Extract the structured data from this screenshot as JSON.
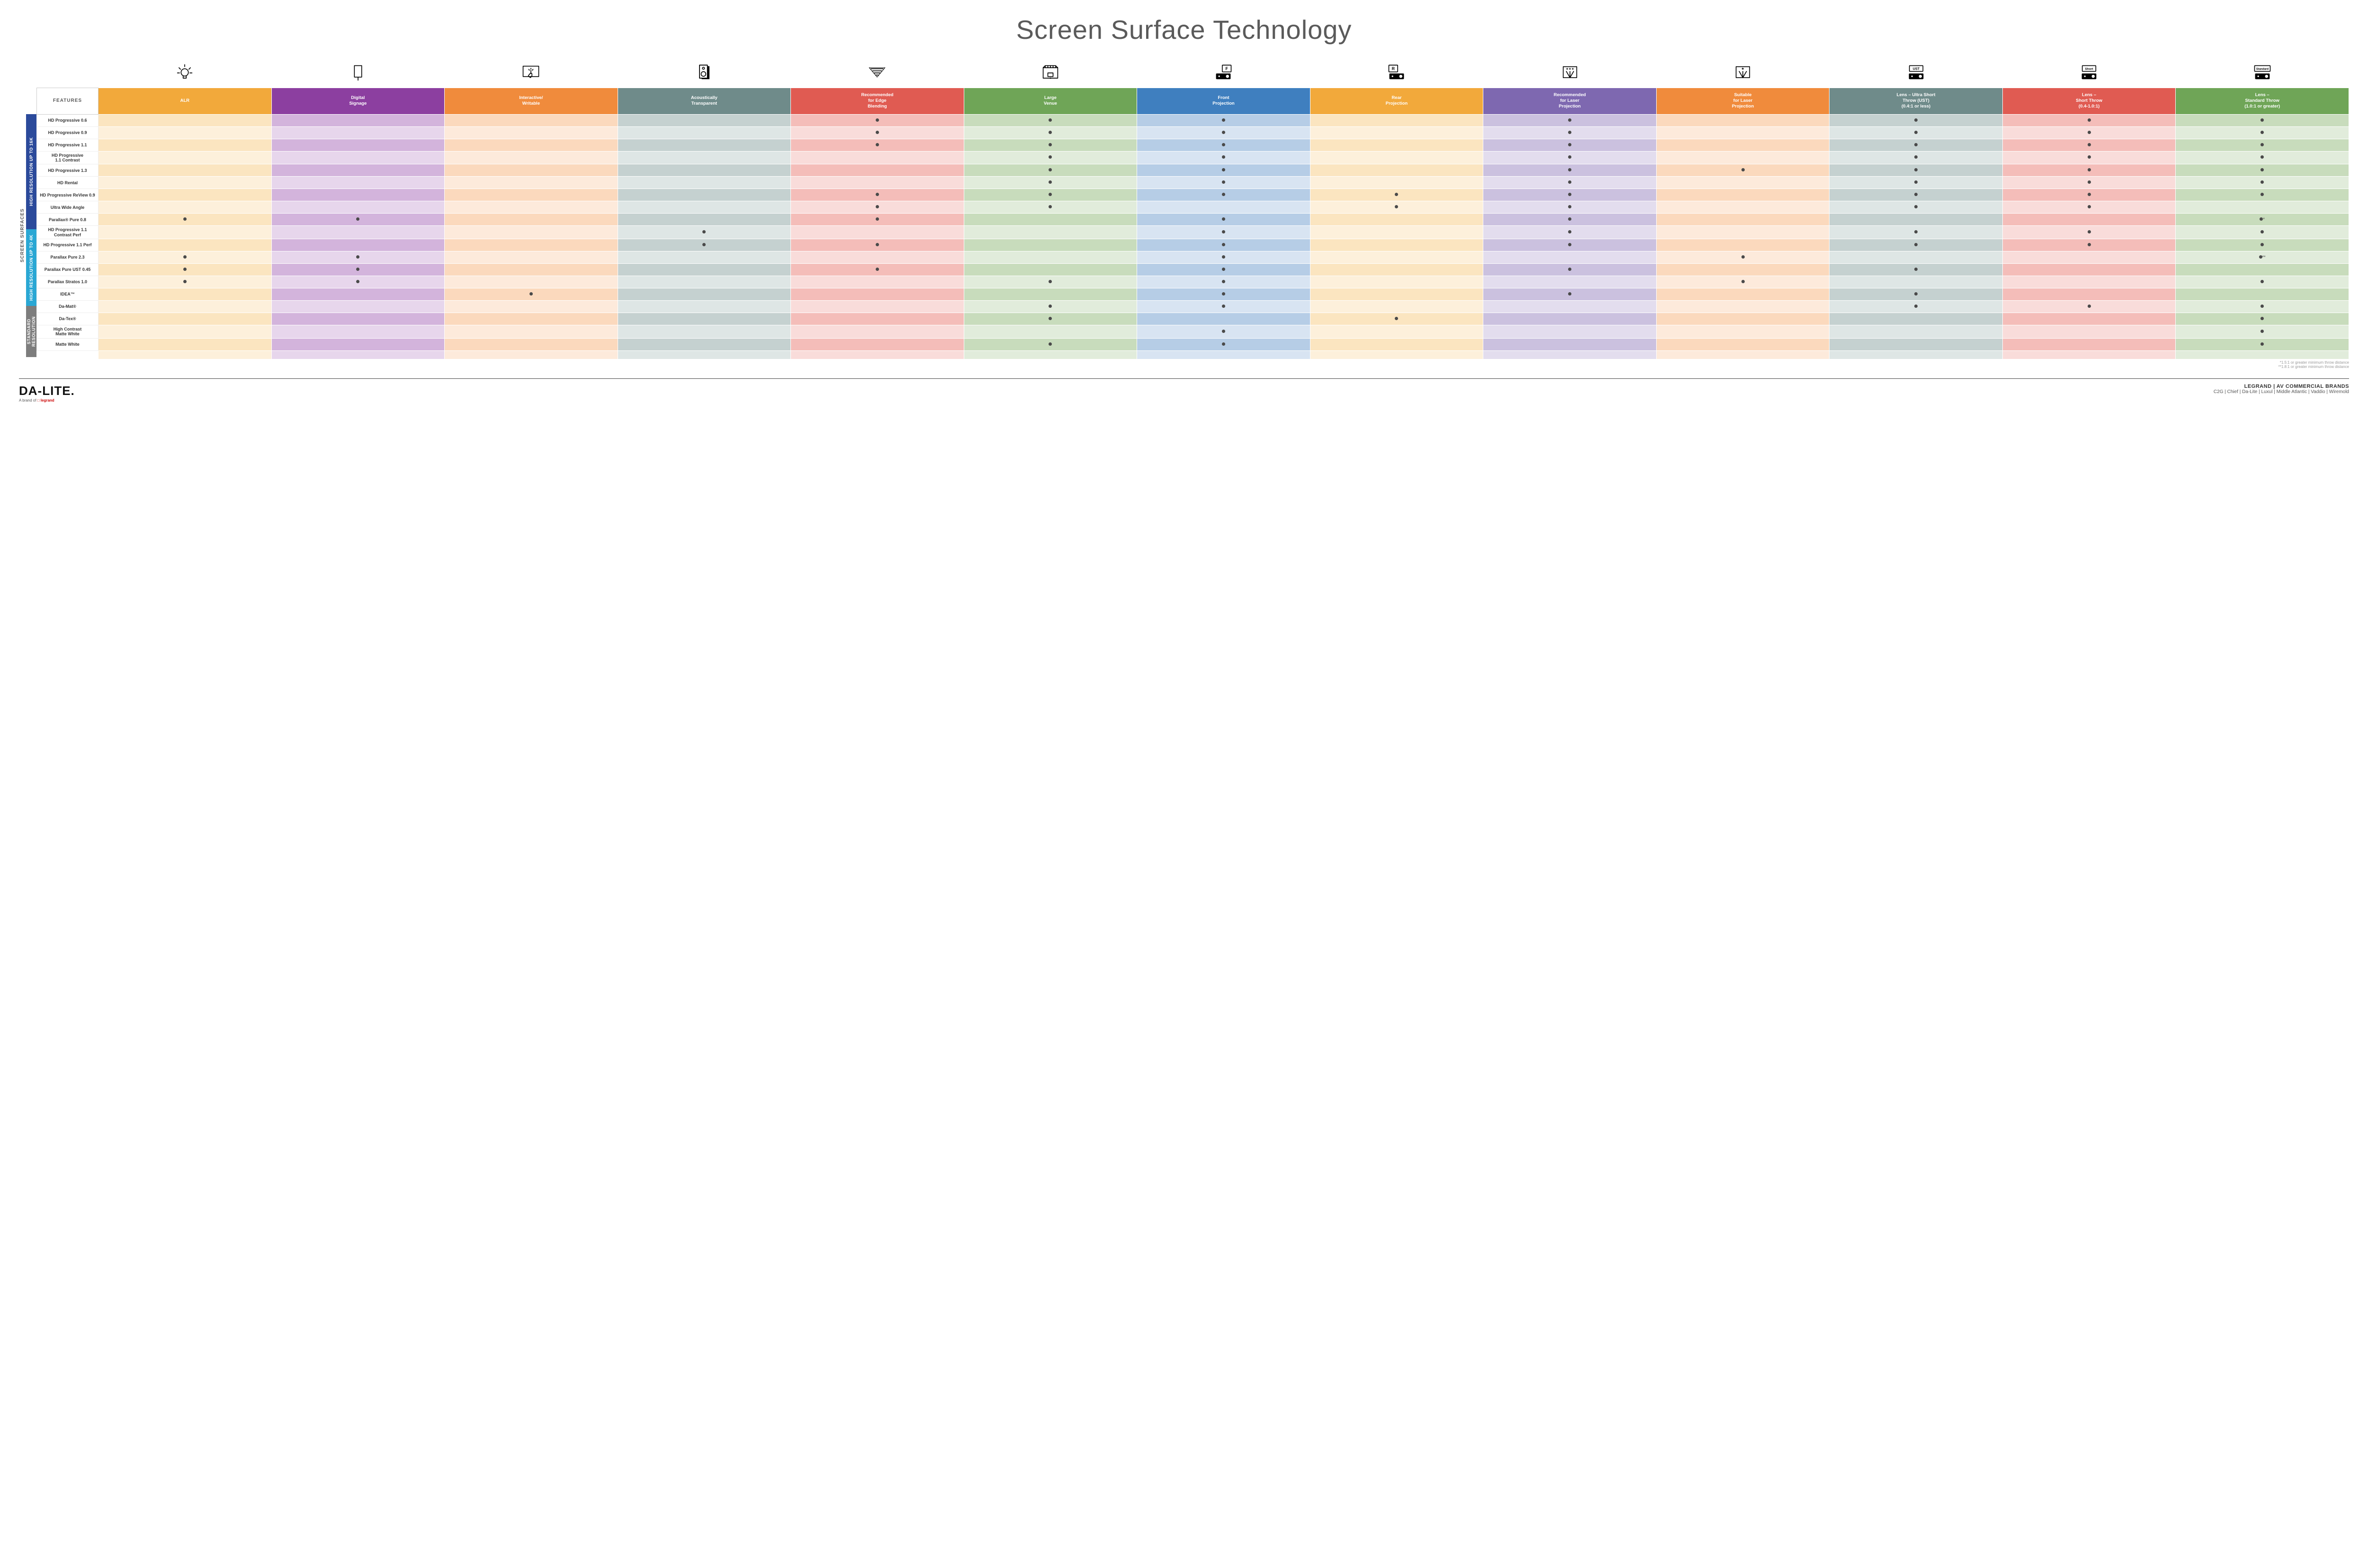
{
  "title": "Screen Surface Technology",
  "features_label": "FEATURES",
  "side_label": "SCREEN SURFACES",
  "columns": [
    {
      "key": "alr",
      "label": "ALR",
      "color": "#f2a93b",
      "light": "#fbe5c0",
      "lighter": "#fdf0db"
    },
    {
      "key": "signage",
      "label": "Digital\nSignage",
      "color": "#8c3fa0",
      "light": "#d3b4dc",
      "lighter": "#e7d6ec"
    },
    {
      "key": "interactive",
      "label": "Interactive/\nWritable",
      "color": "#f08b3c",
      "light": "#fbd9bd",
      "lighter": "#fdeadb"
    },
    {
      "key": "acoustic",
      "label": "Acoustically\nTransparent",
      "color": "#6f8b8a",
      "light": "#c5d1d0",
      "lighter": "#dee6e5"
    },
    {
      "key": "edge",
      "label": "Recommended\nfor Edge\nBlending",
      "color": "#e05b52",
      "light": "#f4bdb9",
      "lighter": "#f9dcda"
    },
    {
      "key": "large",
      "label": "Large\nVenue",
      "color": "#6fa557",
      "light": "#c8dcbc",
      "lighter": "#e1ecdb"
    },
    {
      "key": "front",
      "label": "Front\nProjection",
      "color": "#3f7fbf",
      "light": "#b6cde6",
      "lighter": "#d8e4f2"
    },
    {
      "key": "rear",
      "label": "Rear\nProjection",
      "color": "#f2a93b",
      "light": "#fbe5c0",
      "lighter": "#fdf0db"
    },
    {
      "key": "reclaser",
      "label": "Recommended\nfor Laser\nProjection",
      "color": "#7e68b0",
      "light": "#cbc1df",
      "lighter": "#e3ddee"
    },
    {
      "key": "suitlaser",
      "label": "Suitable\nfor Laser\nProjection",
      "color": "#f08b3c",
      "light": "#fbd9bd",
      "lighter": "#fdeadb"
    },
    {
      "key": "ust",
      "label": "Lens – Ultra Short\nThrow (UST)\n(0.4:1 or less)",
      "color": "#6f8b8a",
      "light": "#c5d1d0",
      "lighter": "#dee6e5"
    },
    {
      "key": "short",
      "label": "Lens –\nShort Throw\n(0.4-1.0:1)",
      "color": "#e05b52",
      "light": "#f4bdb9",
      "lighter": "#f9dcda"
    },
    {
      "key": "std",
      "label": "Lens –\nStandard Throw\n(1.0:1 or greater)",
      "color": "#6fa557",
      "light": "#c8dcbc",
      "lighter": "#e1ecdb"
    }
  ],
  "groups": [
    {
      "label": "HIGH RESOLUTION UP TO 16K",
      "color": "#2b4a9b",
      "row_count": 9
    },
    {
      "label": "HIGH RESOLUTION UP TO 4K",
      "color": "#2aa7d4",
      "row_count": 6
    },
    {
      "label": "STANDARD\nRESOLUTION",
      "color": "#7d7d7d",
      "row_count": 4
    }
  ],
  "rows": [
    {
      "name": "HD Progressive 0.6",
      "dots": {
        "edge": "•",
        "large": "•",
        "front": "•",
        "reclaser": "•",
        "ust": "•",
        "short": "•",
        "std": "•"
      }
    },
    {
      "name": "HD Progressive 0.9",
      "dots": {
        "edge": "•",
        "large": "•",
        "front": "•",
        "reclaser": "•",
        "ust": "•",
        "short": "•",
        "std": "•"
      }
    },
    {
      "name": "HD Progressive 1.1",
      "dots": {
        "edge": "•",
        "large": "•",
        "front": "•",
        "reclaser": "•",
        "ust": "•",
        "short": "•",
        "std": "•"
      }
    },
    {
      "name": "HD Progressive\n1.1 Contrast",
      "dots": {
        "large": "•",
        "front": "•",
        "reclaser": "•",
        "ust": "•",
        "short": "•",
        "std": "•"
      }
    },
    {
      "name": "HD Progressive 1.3",
      "dots": {
        "large": "•",
        "front": "•",
        "reclaser": "•",
        "suitlaser": "•",
        "ust": "•",
        "short": "•",
        "std": "•"
      }
    },
    {
      "name": "HD Rental",
      "dots": {
        "large": "•",
        "front": "•",
        "reclaser": "•",
        "ust": "•",
        "short": "•",
        "std": "•"
      }
    },
    {
      "name": "HD Progressive ReView 0.9",
      "dots": {
        "edge": "•",
        "large": "•",
        "front": "•",
        "rear": "•",
        "reclaser": "•",
        "ust": "•",
        "short": "•",
        "std": "•"
      }
    },
    {
      "name": "Ultra Wide Angle",
      "dots": {
        "edge": "•",
        "large": "•",
        "rear": "•",
        "reclaser": "•",
        "ust": "•",
        "short": "•"
      }
    },
    {
      "name": "Parallax® Pure 0.8",
      "dots": {
        "alr": "•",
        "signage": "•",
        "edge": "•",
        "front": "•",
        "reclaser": "•",
        "std": "•*"
      }
    },
    {
      "name": "HD Progressive 1.1\nContrast Perf",
      "dots": {
        "acoustic": "•",
        "front": "•",
        "reclaser": "•",
        "ust": "•",
        "short": "•",
        "std": "•"
      }
    },
    {
      "name": "HD Progressive 1.1 Perf",
      "dots": {
        "acoustic": "•",
        "edge": "•",
        "front": "•",
        "reclaser": "•",
        "ust": "•",
        "short": "•",
        "std": "•"
      }
    },
    {
      "name": "Parallax Pure 2.3",
      "dots": {
        "alr": "•",
        "signage": "•",
        "front": "•",
        "suitlaser": "•",
        "std": "•**"
      }
    },
    {
      "name": "Parallax Pure UST 0.45",
      "dots": {
        "alr": "•",
        "signage": "•",
        "edge": "•",
        "front": "•",
        "reclaser": "•",
        "ust": "•"
      }
    },
    {
      "name": "Parallax Stratos 1.0",
      "dots": {
        "alr": "•",
        "signage": "•",
        "large": "•",
        "front": "•",
        "suitlaser": "•",
        "std": "•"
      }
    },
    {
      "name": "IDEA™",
      "dots": {
        "interactive": "•",
        "front": "•",
        "reclaser": "•",
        "ust": "•"
      }
    },
    {
      "name": "Da-Mat®",
      "dots": {
        "large": "•",
        "front": "•",
        "ust": "•",
        "short": "•",
        "std": "•"
      }
    },
    {
      "name": "Da-Tex®",
      "dots": {
        "large": "•",
        "rear": "•",
        "std": "•"
      }
    },
    {
      "name": "High Contrast\nMatte White",
      "dots": {
        "front": "•",
        "std": "•"
      }
    },
    {
      "name": "Matte White",
      "dots": {
        "large": "•",
        "front": "•",
        "std": "•"
      }
    }
  ],
  "footnotes": [
    "*1.5:1 or greater minimum throw distance",
    "**1.8:1 or greater minimum throw distance"
  ],
  "footer": {
    "logo": "DA-LITE.",
    "tagline_prefix": "A brand of ",
    "tagline_brand": "legrand",
    "right_line1": "LEGRAND | AV COMMERCIAL BRANDS",
    "right_line2": "C2G  |  Chief  |  Da-Lite  |  Luxul  |  Middle Atlantic  |  Vaddio  |  Wiremold"
  },
  "icons": {
    "alr": "bulb",
    "signage": "signage",
    "interactive": "touch",
    "acoustic": "speaker",
    "edge": "wedge",
    "large": "venue",
    "front": "projF",
    "rear": "projR",
    "reclaser": "laser3",
    "suitlaser": "laser1",
    "ust": "projUST",
    "short": "projShort",
    "std": "projStd"
  }
}
